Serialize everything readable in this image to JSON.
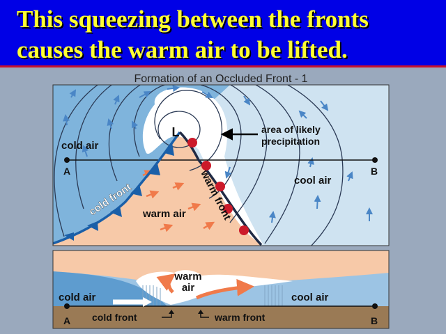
{
  "slide": {
    "title_line1": "This squeezing between the fronts",
    "title_line2": "causes the warm air to be lifted.",
    "title_color": "#ffff33",
    "background": "#0000e6"
  },
  "map": {
    "heading": "Formation of an Occluded Front - 1",
    "low_label": "L",
    "cold_air": "cold air",
    "cool_air": "cool air",
    "warm_air": "warm air",
    "cold_front": "cold front",
    "warm_front": "warm front",
    "precip_line1": "area of likely",
    "precip_line2": "precipitation",
    "point_a": "A",
    "point_b": "B"
  },
  "cross_section": {
    "warm_air_line1": "warm",
    "warm_air_line2": "air",
    "cold_air": "cold air",
    "cool_air": "cool air",
    "cold_front": "cold front",
    "warm_front": "warm front",
    "point_a": "A",
    "point_b": "B"
  },
  "colors": {
    "cold_air": "#7fb4dc",
    "cool_air": "#cfe3f1",
    "warm_air": "#f7c9a8",
    "cold_front": "#1a5fa8",
    "warm_front": "#cc1a2a",
    "cloud": "#ffffff",
    "ground": "#9a7a55"
  }
}
